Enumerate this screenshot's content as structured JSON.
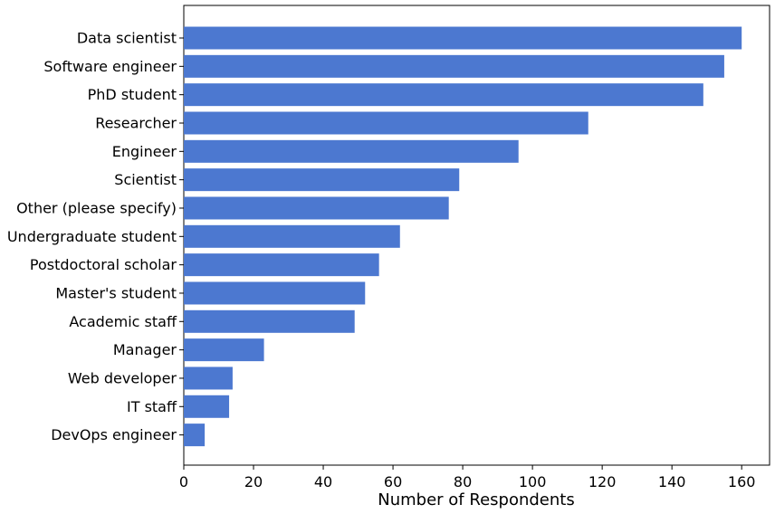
{
  "chart_data": {
    "type": "bar",
    "orientation": "horizontal",
    "categories": [
      "Data scientist",
      "Software engineer",
      "PhD student",
      "Researcher",
      "Engineer",
      "Scientist",
      "Other (please specify)",
      "Undergraduate student",
      "Postdoctoral scholar",
      "Master's student",
      "Academic staff",
      "Manager",
      "Web developer",
      "IT staff",
      "DevOps engineer"
    ],
    "values": [
      160,
      155,
      149,
      116,
      96,
      79,
      76,
      62,
      56,
      52,
      49,
      23,
      14,
      13,
      6
    ],
    "xlabel": "Number of Respondents",
    "ylabel": "",
    "xlim": [
      0,
      168
    ],
    "xticks": [
      0,
      20,
      40,
      60,
      80,
      100,
      120,
      140,
      160
    ],
    "bar_color": "#4c78d0",
    "grid": false
  }
}
